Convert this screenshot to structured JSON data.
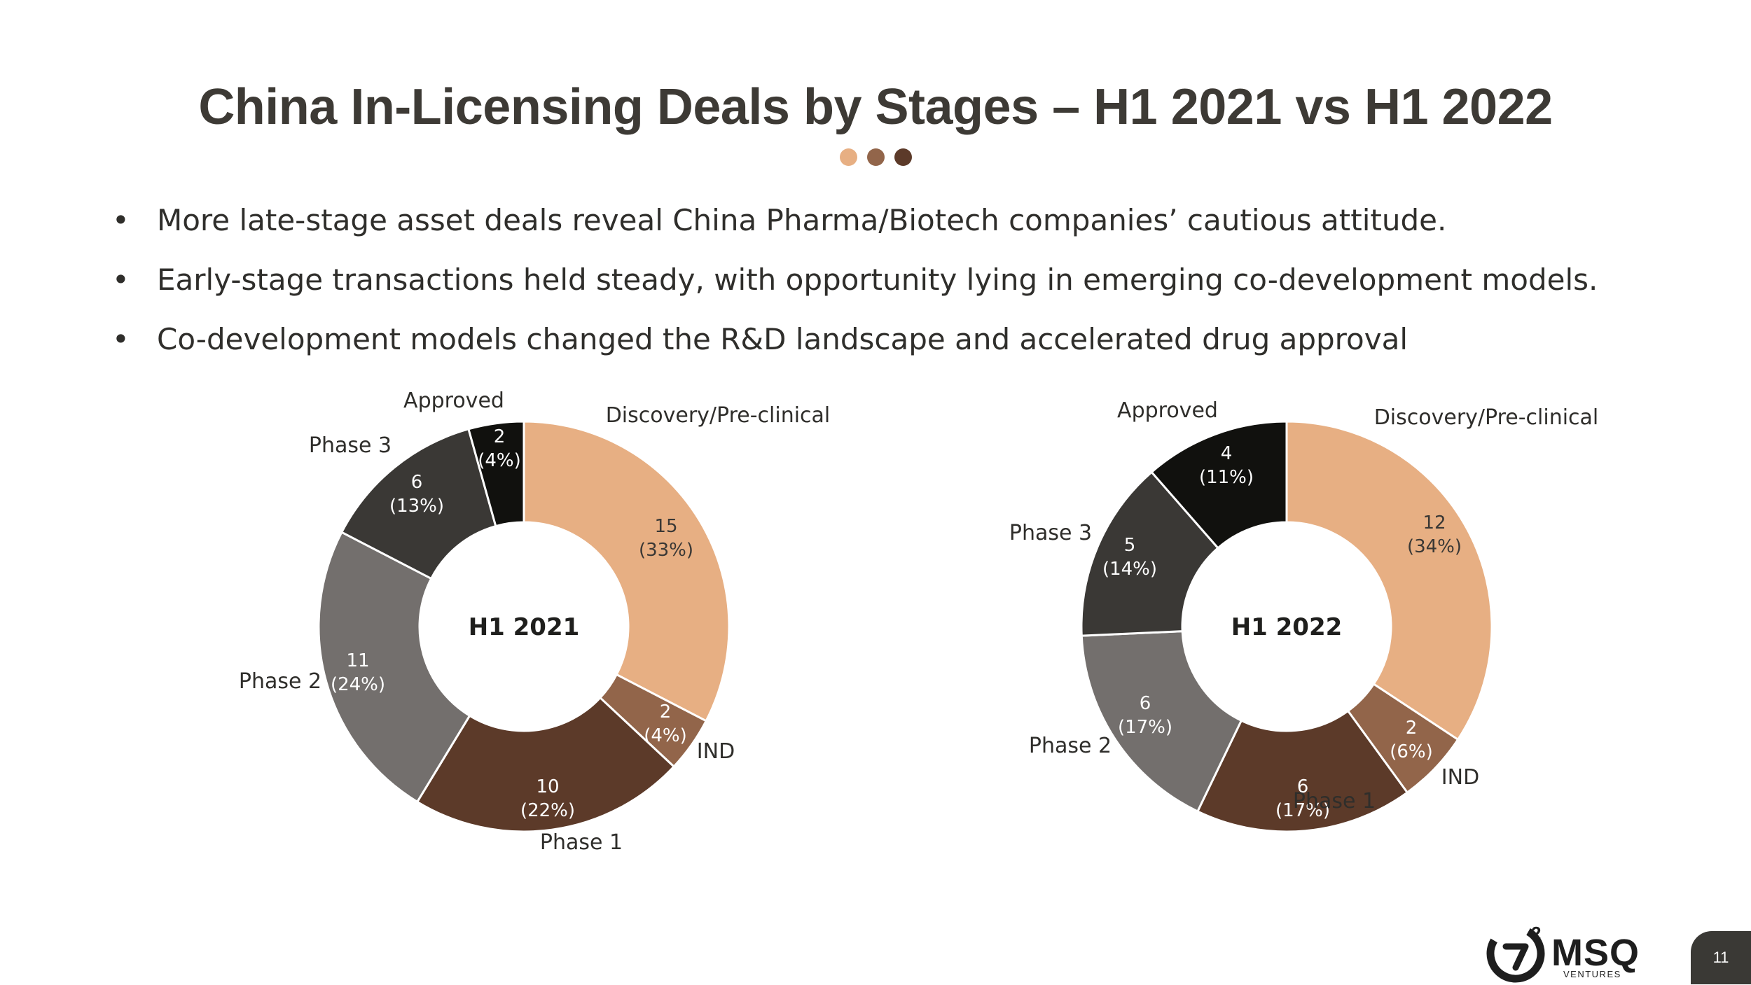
{
  "title": "China In-Licensing Deals by Stages – H1 2021 vs H1 2022",
  "decor_dots": [
    "#e7af83",
    "#92654a",
    "#5c3a29"
  ],
  "bullets": [
    "More late-stage asset deals reveal China Pharma/Biotech companies’ cautious attitude.",
    "Early-stage transactions held steady, with opportunity lying in emerging co-development models.",
    "Co-development models changed the R&D landscape and accelerated drug approval"
  ],
  "chart_data": [
    {
      "type": "pie",
      "title": "H1 2021",
      "categories": [
        "Discovery/Pre-clinical",
        "IND",
        "Phase 1",
        "Phase 2",
        "Phase 3",
        "Approved"
      ],
      "values": [
        15,
        2,
        10,
        11,
        6,
        2
      ],
      "labels": [
        "15\n(33%)",
        "2\n(4%)",
        "10\n(22%)",
        "11\n(24%)",
        "6\n(13%)",
        "2\n(4%)"
      ],
      "colors": [
        "#e7af83",
        "#92654a",
        "#5c3a29",
        "#736f6d",
        "#3a3835",
        "#11110e"
      ],
      "label_colors": [
        "#3a3835",
        "#ffffff",
        "#ffffff",
        "#ffffff",
        "#ffffff",
        "#ffffff"
      ]
    },
    {
      "type": "pie",
      "title": "H1 2022",
      "categories": [
        "Discovery/Pre-clinical",
        "IND",
        "Phase 1",
        "Phase 2",
        "Phase 3",
        "Approved"
      ],
      "values": [
        12,
        2,
        6,
        6,
        5,
        4
      ],
      "labels": [
        "12\n(34%)",
        "2\n(6%)",
        "6\n(17%)",
        "6\n(17%)",
        "5\n(14%)",
        "4\n(11%)"
      ],
      "colors": [
        "#e7af83",
        "#92654a",
        "#5c3a29",
        "#736f6d",
        "#3a3835",
        "#11110e"
      ],
      "label_colors": [
        "#3a3835",
        "#ffffff",
        "#ffffff",
        "#ffffff",
        "#ffffff",
        "#ffffff"
      ]
    }
  ],
  "logo": {
    "name": "MSQ",
    "sub": "VENTURES"
  },
  "page_number": "11"
}
